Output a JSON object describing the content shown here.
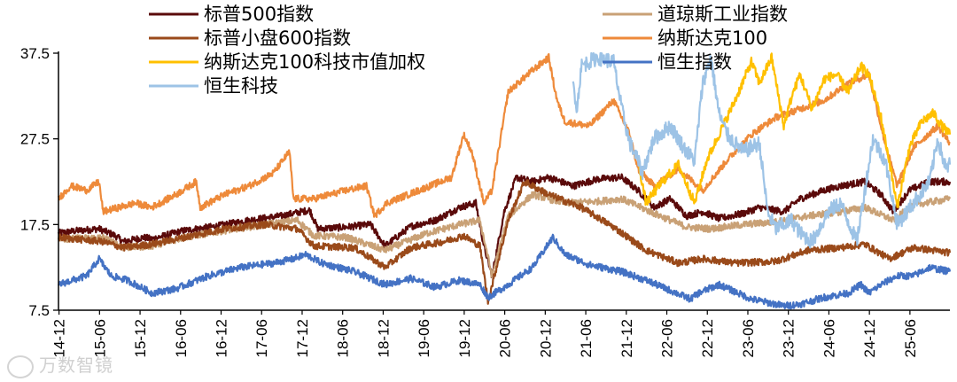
{
  "chart_data": {
    "type": "line",
    "title": "",
    "xlabel": "",
    "ylabel": "",
    "ylim": [
      7.5,
      37.5
    ],
    "yticks": [
      "7.5",
      "17.5",
      "27.5",
      "37.5"
    ],
    "x_range": [
      2014.95,
      2025.95
    ],
    "xticks": [
      "14-12",
      "15-06",
      "15-12",
      "16-06",
      "16-12",
      "17-06",
      "17-12",
      "18-06",
      "18-12",
      "19-06",
      "19-12",
      "20-06",
      "20-12",
      "21-06",
      "21-12",
      "22-06",
      "22-12",
      "23-06",
      "23-12",
      "24-06",
      "24-12",
      "25-06"
    ],
    "legend_position": "top",
    "series": [
      {
        "name": "标普500指数",
        "color": "#5a0a0a",
        "x": [
          2014.95,
          2015.2,
          2015.45,
          2015.65,
          2015.75,
          2016.0,
          2016.1,
          2016.5,
          2016.9,
          2017.3,
          2017.7,
          2018.05,
          2018.15,
          2018.5,
          2018.8,
          2018.98,
          2019.3,
          2019.6,
          2019.9,
          2020.1,
          2020.2,
          2020.3,
          2020.45,
          2020.6,
          2020.8,
          2021.0,
          2021.3,
          2021.6,
          2021.9,
          2022.1,
          2022.3,
          2022.5,
          2022.7,
          2022.9,
          2023.1,
          2023.4,
          2023.6,
          2023.9,
          2024.1,
          2024.4,
          2024.6,
          2024.9,
          2025.1,
          2025.25,
          2025.45,
          2025.7,
          2025.95
        ],
        "values": [
          16.5,
          16.8,
          17.0,
          16.2,
          15.5,
          16.0,
          15.8,
          16.8,
          17.3,
          18.0,
          18.5,
          19.2,
          17.0,
          17.2,
          17.5,
          15.0,
          17.3,
          18.0,
          19.5,
          20.0,
          15.0,
          11.5,
          19.0,
          23.0,
          22.5,
          23.0,
          22.0,
          22.8,
          23.0,
          21.5,
          19.5,
          20.5,
          18.5,
          19.0,
          18.2,
          18.8,
          19.5,
          19.0,
          20.5,
          21.5,
          22.0,
          22.5,
          21.0,
          19.0,
          21.5,
          22.5,
          22.5
        ]
      },
      {
        "name": "道琼斯工业指数",
        "color": "#c9a176",
        "x": [
          2014.95,
          2015.5,
          2015.75,
          2016.1,
          2016.5,
          2017.0,
          2017.5,
          2017.9,
          2018.1,
          2018.5,
          2018.98,
          2019.5,
          2019.9,
          2020.15,
          2020.3,
          2020.5,
          2020.8,
          2021.2,
          2021.6,
          2021.9,
          2022.3,
          2022.7,
          2023.0,
          2023.4,
          2023.8,
          2024.2,
          2024.6,
          2024.9,
          2025.25,
          2025.5,
          2025.95
        ],
        "values": [
          15.8,
          16.0,
          14.8,
          15.0,
          16.0,
          16.8,
          17.5,
          18.0,
          16.2,
          16.0,
          14.5,
          16.5,
          17.5,
          18.0,
          11.5,
          18.5,
          21.0,
          20.0,
          20.2,
          20.5,
          18.8,
          17.2,
          17.0,
          17.5,
          17.8,
          18.5,
          19.0,
          19.5,
          18.0,
          19.8,
          20.5
        ]
      },
      {
        "name": "标普小盘600指数",
        "color": "#9a4a1a",
        "x": [
          2014.95,
          2015.5,
          2015.75,
          2016.1,
          2016.6,
          2017.0,
          2017.5,
          2017.9,
          2018.1,
          2018.6,
          2018.98,
          2019.3,
          2019.7,
          2019.95,
          2020.15,
          2020.25,
          2020.5,
          2020.7,
          2021.0,
          2021.4,
          2021.8,
          2022.2,
          2022.6,
          2022.9,
          2023.3,
          2023.8,
          2024.2,
          2024.6,
          2024.9,
          2025.2,
          2025.5,
          2025.95
        ],
        "values": [
          16.0,
          15.5,
          14.8,
          15.2,
          16.2,
          17.0,
          17.5,
          17.0,
          15.0,
          14.8,
          12.5,
          14.8,
          15.5,
          16.2,
          15.0,
          8.5,
          18.0,
          22.5,
          21.0,
          19.5,
          17.2,
          14.5,
          13.0,
          13.5,
          13.0,
          13.2,
          14.5,
          14.8,
          15.2,
          13.5,
          14.8,
          14.2
        ]
      },
      {
        "name": "纳斯达克100",
        "color": "#ee8a3a",
        "x": [
          2014.95,
          2015.1,
          2015.3,
          2015.45,
          2015.5,
          2015.9,
          2016.1,
          2016.4,
          2016.65,
          2016.7,
          2017.0,
          2017.3,
          2017.6,
          2017.8,
          2017.85,
          2018.1,
          2018.5,
          2018.75,
          2018.85,
          2019.0,
          2019.4,
          2019.8,
          2019.95,
          2020.05,
          2020.2,
          2020.3,
          2020.5,
          2020.8,
          2021.0,
          2021.08,
          2021.12,
          2021.2,
          2021.5,
          2021.8,
          2022.0,
          2022.1,
          2022.3,
          2022.6,
          2022.9,
          2023.2,
          2023.5,
          2023.8,
          2024.1,
          2024.4,
          2024.7,
          2024.95,
          2025.15,
          2025.3,
          2025.5,
          2025.8,
          2025.95
        ],
        "values": [
          20.5,
          22.0,
          21.5,
          22.5,
          19.0,
          20.0,
          19.5,
          21.0,
          22.5,
          19.5,
          21.0,
          22.0,
          23.5,
          26.0,
          20.5,
          20.5,
          21.5,
          22.0,
          18.5,
          20.0,
          21.5,
          23.0,
          28.0,
          26.0,
          20.0,
          21.5,
          33.0,
          35.5,
          37.0,
          33.0,
          31.5,
          29.5,
          29.0,
          32.0,
          28.0,
          24.0,
          22.0,
          24.0,
          21.5,
          25.0,
          28.0,
          30.0,
          31.0,
          32.0,
          34.0,
          35.0,
          27.0,
          22.0,
          26.5,
          29.0,
          27.0
        ]
      },
      {
        "name": "纳斯达克100科技市值加权",
        "color": "#ffc000",
        "x": [
          2022.1,
          2022.2,
          2022.4,
          2022.6,
          2022.8,
          2022.95,
          2023.1,
          2023.3,
          2023.5,
          2023.6,
          2023.75,
          2023.9,
          2024.0,
          2024.1,
          2024.25,
          2024.4,
          2024.55,
          2024.7,
          2024.85,
          2024.95,
          2025.1,
          2025.2,
          2025.3,
          2025.45,
          2025.6,
          2025.75,
          2025.85,
          2025.95
        ],
        "values": [
          25.0,
          20.0,
          22.5,
          24.5,
          20.0,
          25.0,
          28.0,
          32.0,
          36.5,
          34.0,
          37.0,
          29.0,
          32.5,
          35.0,
          31.0,
          34.5,
          35.0,
          33.0,
          36.0,
          35.0,
          30.0,
          25.0,
          19.5,
          26.5,
          29.5,
          30.5,
          29.0,
          28.0
        ]
      },
      {
        "name": "恒生指数",
        "color": "#4472c4",
        "x": [
          2014.95,
          2015.3,
          2015.45,
          2015.6,
          2015.8,
          2016.1,
          2016.4,
          2016.8,
          2017.2,
          2017.6,
          2017.85,
          2018.0,
          2018.2,
          2018.6,
          2018.98,
          2019.3,
          2019.6,
          2019.9,
          2020.15,
          2020.25,
          2020.5,
          2020.8,
          2021.05,
          2021.2,
          2021.5,
          2021.9,
          2022.2,
          2022.5,
          2022.75,
          2022.85,
          2023.1,
          2023.5,
          2023.9,
          2024.1,
          2024.4,
          2024.7,
          2024.85,
          2024.95,
          2025.1,
          2025.3,
          2025.5,
          2025.7,
          2025.95
        ],
        "values": [
          10.5,
          11.5,
          13.5,
          11.5,
          11.0,
          9.5,
          10.0,
          11.5,
          12.5,
          13.0,
          13.5,
          14.0,
          13.0,
          12.0,
          10.5,
          11.2,
          10.2,
          11.0,
          10.5,
          9.0,
          10.5,
          12.5,
          16.0,
          14.0,
          12.8,
          12.0,
          11.0,
          9.8,
          8.8,
          9.5,
          10.5,
          8.8,
          8.0,
          8.2,
          9.0,
          9.5,
          10.5,
          9.5,
          10.5,
          11.5,
          11.5,
          12.5,
          12.0
        ]
      },
      {
        "name": "恒生科技",
        "color": "#9dc3e6",
        "x": [
          2021.3,
          2021.35,
          2021.4,
          2021.6,
          2021.8,
          2021.9,
          2022.0,
          2022.1,
          2022.15,
          2022.3,
          2022.5,
          2022.7,
          2022.8,
          2022.9,
          2023.0,
          2023.1,
          2023.2,
          2023.4,
          2023.6,
          2023.7,
          2023.8,
          2024.0,
          2024.1,
          2024.25,
          2024.45,
          2024.6,
          2024.8,
          2024.9,
          2025.0,
          2025.15,
          2025.3,
          2025.5,
          2025.7,
          2025.8,
          2025.9,
          2025.95
        ],
        "values": [
          34.0,
          31.0,
          36.0,
          37.0,
          36.5,
          31.0,
          27.0,
          25.0,
          23.5,
          27.5,
          29.0,
          26.0,
          25.0,
          34.0,
          37.0,
          30.5,
          28.0,
          26.0,
          27.0,
          19.0,
          17.0,
          18.0,
          16.5,
          15.5,
          19.0,
          20.0,
          15.5,
          21.5,
          27.5,
          25.0,
          17.5,
          20.0,
          22.5,
          27.5,
          24.0,
          24.5
        ]
      }
    ]
  },
  "watermark": "万数智镜"
}
